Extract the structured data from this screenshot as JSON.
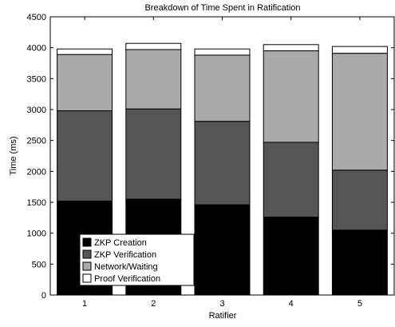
{
  "chart_data": {
    "type": "bar",
    "stacked": true,
    "title": "Breakdown of Time Spent in Ratification",
    "xlabel": "Ratifier",
    "ylabel": "Time (ms)",
    "categories": [
      "1",
      "2",
      "3",
      "4",
      "5"
    ],
    "ylim": [
      0,
      4500
    ],
    "yticks": [
      0,
      500,
      1000,
      1500,
      2000,
      2500,
      3000,
      3500,
      4000,
      4500
    ],
    "grid": false,
    "legend_position": "bottom-left",
    "series": [
      {
        "name": "ZKP Creation",
        "color": "#000000",
        "values": [
          1520,
          1550,
          1460,
          1260,
          1050
        ]
      },
      {
        "name": "ZKP Verification",
        "color": "#555555",
        "values": [
          1460,
          1460,
          1350,
          1210,
          970
        ]
      },
      {
        "name": "Network/Waiting",
        "color": "#aaaaaa",
        "values": [
          910,
          960,
          1070,
          1480,
          1890
        ]
      },
      {
        "name": "Proof Verification",
        "color": "#ffffff",
        "values": [
          90,
          100,
          100,
          100,
          110
        ]
      }
    ]
  }
}
